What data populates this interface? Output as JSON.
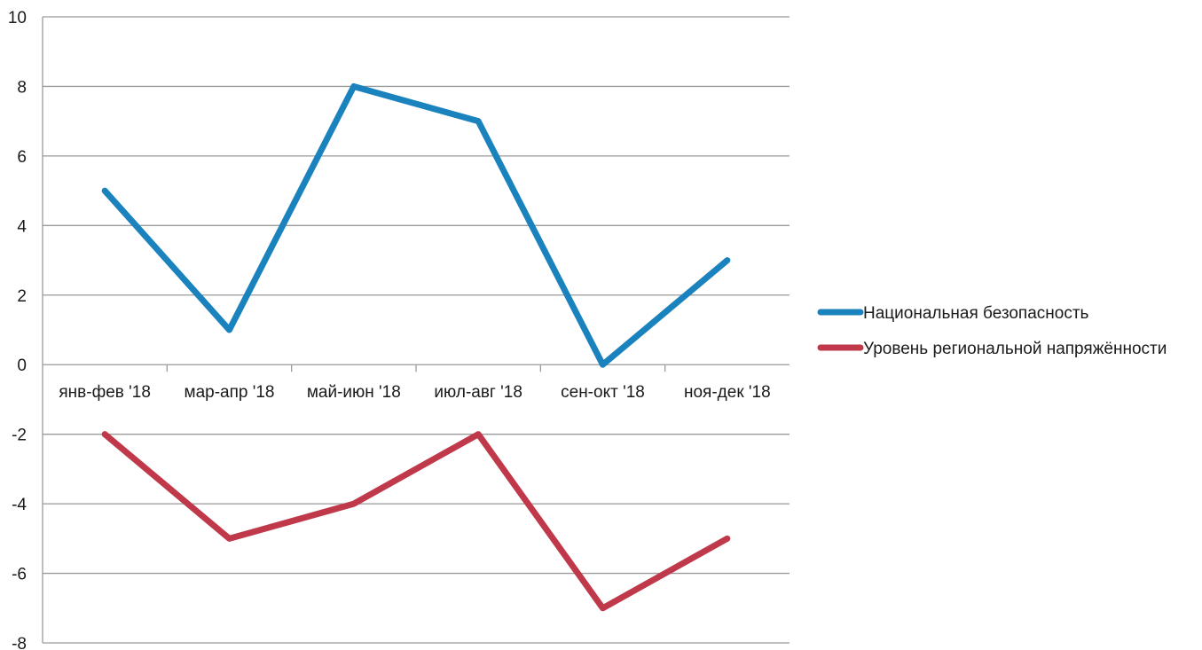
{
  "chart_data": {
    "type": "line",
    "categories": [
      "янв-фев '18",
      "мар-апр '18",
      "май-июн '18",
      "июл-авг '18",
      "сен-окт '18",
      "ноя-дек '18"
    ],
    "series": [
      {
        "name": "Национальная безопасность",
        "values": [
          5,
          1,
          8,
          7,
          0,
          3
        ],
        "color": "#1a82bd"
      },
      {
        "name": "Уровень региональной напряжённости",
        "values": [
          -2,
          -5,
          -4,
          -2,
          -7,
          -5
        ],
        "color": "#c0394b"
      }
    ],
    "ylim": [
      -8,
      10
    ],
    "yticks": [
      10,
      8,
      6,
      4,
      2,
      0,
      -2,
      -4,
      -6,
      -8
    ],
    "grid": true,
    "gridColor": "#9a9a9a",
    "legend_position": "right",
    "title": "",
    "xlabel": "",
    "ylabel": ""
  }
}
